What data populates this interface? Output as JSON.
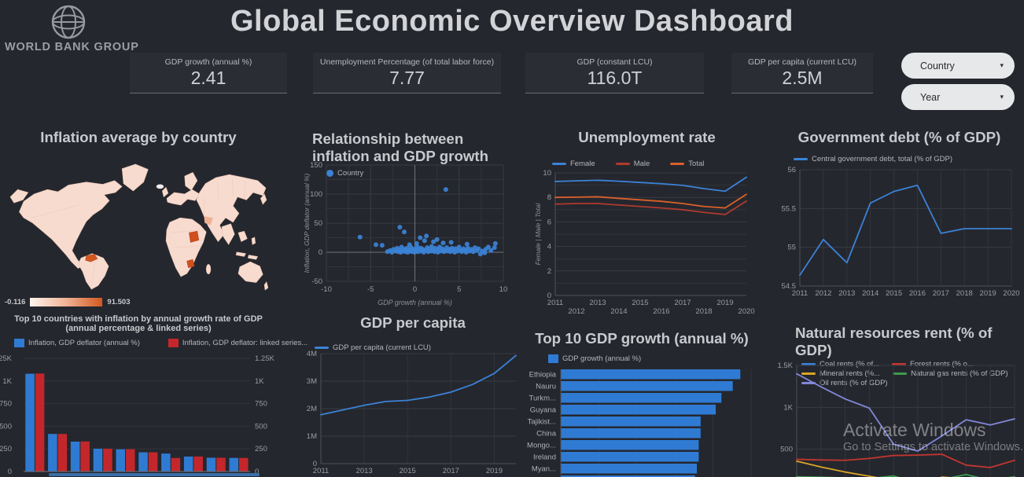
{
  "header": {
    "title": "Global Economic Overview Dashboard",
    "logo_text": "WORLD BANK GROUP"
  },
  "kpis": [
    {
      "label": "GDP growth (annual %)",
      "value": "2.41"
    },
    {
      "label": "Unemployment Percentage (of total labor force)",
      "value": "7.77"
    },
    {
      "label": "GDP (constant LCU)",
      "value": "116.0T"
    },
    {
      "label": "GDP per capita (current LCU)",
      "value": "2.5M"
    }
  ],
  "filters": [
    {
      "label": "Country"
    },
    {
      "label": "Year"
    }
  ],
  "watermark": {
    "line1": "Activate Windows",
    "line2": "Go to Settings to activate Windows."
  },
  "chart_data": [
    {
      "id": "inflation-map",
      "type": "choropleth",
      "title": "Inflation average by country",
      "legend_min": "-0.116",
      "legend_max": "91.503",
      "min_color": "#fdf4ef",
      "max_color": "#d2571e",
      "land_color": "#f7dbce",
      "highlights": [
        "Venezuela",
        "Sudan",
        "Zimbabwe"
      ]
    },
    {
      "id": "inflation-gdp-scatter",
      "type": "scatter",
      "title": "Relationship between inflation and GDP growth",
      "legend": [
        "Country"
      ],
      "color": "#3b82d6",
      "xlabel": "GDP growth (annual %)",
      "ylabel": "Inflation, GDP deflator (annual %)",
      "xlim": [
        -10,
        10
      ],
      "ylim": [
        -50,
        150
      ],
      "xticks": [
        {
          "v": -10,
          "l": "-10"
        },
        {
          "v": -7.5,
          "l": ""
        },
        {
          "v": -5,
          "l": "-5"
        },
        {
          "v": -2.5,
          "l": ""
        },
        {
          "v": 0,
          "l": "0"
        },
        {
          "v": 2.5,
          "l": ""
        },
        {
          "v": 5,
          "l": "5"
        },
        {
          "v": 7.5,
          "l": ""
        },
        {
          "v": 10,
          "l": "10"
        }
      ],
      "yticks": [
        {
          "v": -50,
          "l": "-50"
        },
        {
          "v": -25,
          "l": ""
        },
        {
          "v": 0,
          "l": "0"
        },
        {
          "v": 25,
          "l": ""
        },
        {
          "v": 50,
          "l": "50"
        },
        {
          "v": 75,
          "l": ""
        },
        {
          "v": 100,
          "l": "100"
        },
        {
          "v": 125,
          "l": ""
        },
        {
          "v": 150,
          "l": "150"
        }
      ],
      "points": [
        [
          3.5,
          108
        ],
        [
          -6.2,
          26
        ],
        [
          -1.7,
          43
        ],
        [
          -1.2,
          35
        ],
        [
          1.3,
          28
        ],
        [
          0.6,
          25
        ],
        [
          2.5,
          22
        ],
        [
          -4.4,
          13
        ],
        [
          -3.7,
          12
        ],
        [
          9.1,
          15
        ],
        [
          8.3,
          9
        ],
        [
          5.9,
          14
        ],
        [
          4.1,
          17
        ],
        [
          3.2,
          16
        ],
        [
          2.1,
          18
        ],
        [
          1.1,
          20
        ],
        [
          0.2,
          15
        ],
        [
          -0.6,
          13
        ],
        [
          7.4,
          -3
        ],
        [
          7.9,
          -1
        ],
        [
          -3.1,
          1
        ],
        [
          -2.8,
          3
        ],
        [
          -2.6,
          0
        ],
        [
          -2.4,
          5
        ],
        [
          -2.2,
          2
        ],
        [
          -2.0,
          7
        ],
        [
          -1.9,
          1
        ],
        [
          -1.8,
          4
        ],
        [
          -1.6,
          0
        ],
        [
          -1.5,
          9
        ],
        [
          -1.4,
          2
        ],
        [
          -1.2,
          5
        ],
        [
          -1.1,
          1
        ],
        [
          -1.0,
          3
        ],
        [
          -0.9,
          7
        ],
        [
          -0.8,
          0
        ],
        [
          -0.7,
          4
        ],
        [
          -0.5,
          2
        ],
        [
          -0.4,
          8
        ],
        [
          -0.3,
          1
        ],
        [
          -0.2,
          5
        ],
        [
          -0.1,
          3
        ],
        [
          0.0,
          0
        ],
        [
          0.1,
          6
        ],
        [
          0.2,
          2
        ],
        [
          0.3,
          9
        ],
        [
          0.4,
          1
        ],
        [
          0.5,
          4
        ],
        [
          0.7,
          7
        ],
        [
          0.8,
          2
        ],
        [
          0.9,
          5
        ],
        [
          1.0,
          0
        ],
        [
          1.2,
          3
        ],
        [
          1.4,
          8
        ],
        [
          1.5,
          1
        ],
        [
          1.6,
          6
        ],
        [
          1.8,
          2
        ],
        [
          1.9,
          10
        ],
        [
          2.0,
          4
        ],
        [
          2.2,
          1
        ],
        [
          2.3,
          7
        ],
        [
          2.4,
          3
        ],
        [
          2.6,
          0
        ],
        [
          2.7,
          5
        ],
        [
          2.8,
          9
        ],
        [
          3.0,
          2
        ],
        [
          3.1,
          6
        ],
        [
          3.3,
          1
        ],
        [
          3.4,
          4
        ],
        [
          3.6,
          8
        ],
        [
          3.7,
          2
        ],
        [
          3.9,
          5
        ],
        [
          4.0,
          1
        ],
        [
          4.2,
          7
        ],
        [
          4.3,
          3
        ],
        [
          4.5,
          0
        ],
        [
          4.6,
          6
        ],
        [
          4.8,
          2
        ],
        [
          5.0,
          9
        ],
        [
          5.1,
          4
        ],
        [
          5.3,
          1
        ],
        [
          5.5,
          6
        ],
        [
          5.7,
          3
        ],
        [
          5.8,
          0
        ],
        [
          6.0,
          7
        ],
        [
          6.2,
          2
        ],
        [
          6.4,
          5
        ],
        [
          6.6,
          1
        ],
        [
          6.8,
          8
        ],
        [
          7.0,
          3
        ],
        [
          7.2,
          6
        ],
        [
          7.6,
          2
        ],
        [
          8.0,
          5
        ],
        [
          8.6,
          3
        ],
        [
          9.0,
          8
        ]
      ]
    },
    {
      "id": "unemployment-rate",
      "type": "line",
      "title": "Unemployment rate",
      "ylabel": "Female | Male | Total",
      "x": [
        "2011",
        "2012",
        "2013",
        "2014",
        "2015",
        "2016",
        "2017",
        "2018",
        "2019",
        "2020"
      ],
      "xlabels": [
        "2011",
        "2012",
        "2013",
        "2014",
        "2015",
        "2016",
        "2017",
        "2018",
        "2019",
        "2020"
      ],
      "stagger": true,
      "vgrid": "none",
      "ylim": [
        0,
        10
      ],
      "yticks": [
        {
          "v": 0,
          "l": "0"
        },
        {
          "v": 1,
          "l": ""
        },
        {
          "v": 2,
          "l": "2"
        },
        {
          "v": 3,
          "l": ""
        },
        {
          "v": 4,
          "l": "4"
        },
        {
          "v": 5,
          "l": ""
        },
        {
          "v": 6,
          "l": "6"
        },
        {
          "v": 7,
          "l": ""
        },
        {
          "v": 8,
          "l": "8"
        },
        {
          "v": 9,
          "l": ""
        },
        {
          "v": 10,
          "l": "10"
        }
      ],
      "series": [
        {
          "name": "Female",
          "color": "#3b82d6",
          "values": [
            9.3,
            9.35,
            9.4,
            9.32,
            9.22,
            9.12,
            8.98,
            8.72,
            8.5,
            9.65
          ]
        },
        {
          "name": "Male",
          "color": "#b03a2e",
          "values": [
            7.45,
            7.5,
            7.5,
            7.38,
            7.26,
            7.14,
            7.0,
            6.78,
            6.6,
            7.7
          ]
        },
        {
          "name": "Total",
          "color": "#d9602b",
          "values": [
            8.0,
            8.02,
            8.05,
            7.92,
            7.8,
            7.68,
            7.5,
            7.26,
            7.14,
            8.25
          ]
        }
      ]
    },
    {
      "id": "government-debt",
      "type": "line",
      "title": "Government debt (% of GDP)",
      "x": [
        "2011",
        "2012",
        "2013",
        "2014",
        "2015",
        "2016",
        "2017",
        "2018",
        "2019",
        "2020"
      ],
      "xlabels": [
        "2011",
        "2012",
        "2013",
        "2014",
        "2015",
        "2016",
        "2017",
        "2018",
        "2019",
        "2020"
      ],
      "stagger": false,
      "vgrid": "all",
      "ylim": [
        54.5,
        56
      ],
      "yticks": [
        {
          "v": 54.5,
          "l": "54.5"
        },
        {
          "v": 55,
          "l": "55"
        },
        {
          "v": 55.5,
          "l": "55.5"
        },
        {
          "v": 56,
          "l": "56"
        }
      ],
      "series": [
        {
          "name": "Central government debt, total (% of GDP)",
          "color": "#3b82d6",
          "values": [
            54.64,
            55.1,
            54.8,
            55.57,
            55.72,
            55.8,
            55.18,
            55.24,
            55.24,
            55.24
          ]
        }
      ]
    },
    {
      "id": "top10-inflation",
      "type": "bar",
      "title": "Top 10 countries with inflation by annual growth rate of GDP",
      "subtitle": "(annual percentage & linked series)",
      "ylim": [
        0,
        1250
      ],
      "yticks": [
        {
          "v": 0,
          "l": "0"
        },
        {
          "v": 250,
          "l": "250"
        },
        {
          "v": 500,
          "l": "500"
        },
        {
          "v": 750,
          "l": "750"
        },
        {
          "v": 1000,
          "l": "1K"
        },
        {
          "v": 1250,
          "l": "1.25K"
        }
      ],
      "series": [
        {
          "name": "Inflation, GDP deflator (annual %)",
          "color": "#2f7bd3",
          "values": [
            1080,
            415,
            330,
            252,
            245,
            212,
            198,
            165,
            152,
            150
          ]
        },
        {
          "name": "Inflation, GDP deflator: linked series...",
          "color": "#c3272b",
          "values": [
            1082,
            415,
            332,
            252,
            246,
            212,
            150,
            166,
            152,
            150
          ]
        }
      ]
    },
    {
      "id": "gdp-per-capita",
      "type": "line",
      "title": "GDP per capita",
      "x": [
        "2011",
        "2012",
        "2013",
        "2014",
        "2015",
        "2016",
        "2017",
        "2018",
        "2019",
        "2020"
      ],
      "xlabels": [
        "2011",
        "",
        "2013",
        "",
        "2015",
        "",
        "2017",
        "",
        "2019",
        ""
      ],
      "stagger": false,
      "vgrid": "labeled",
      "ylim": [
        0,
        4000000
      ],
      "yticks": [
        {
          "v": 0,
          "l": "0"
        },
        {
          "v": 1000000,
          "l": "1M"
        },
        {
          "v": 2000000,
          "l": "2M"
        },
        {
          "v": 3000000,
          "l": "3M"
        },
        {
          "v": 4000000,
          "l": "4M"
        }
      ],
      "series": [
        {
          "name": "GDP per capita (current LCU)",
          "color": "#3b82d6",
          "values": [
            1780000,
            1950000,
            2120000,
            2260000,
            2300000,
            2420000,
            2600000,
            2880000,
            3280000,
            3930000
          ]
        }
      ]
    },
    {
      "id": "top10-gdp-growth",
      "type": "hbar",
      "title": "Top 10 GDP growth  (annual %)",
      "legend": [
        "GDP growth (annual %)"
      ],
      "color": "#2f7bd3",
      "categories": [
        "Ethiopia",
        "Nauru",
        "Turkm...",
        "Guyana",
        "Tajikist...",
        "China",
        "Mongo...",
        "Ireland",
        "Myan...",
        ""
      ],
      "values": [
        9.5,
        9.1,
        8.5,
        8.2,
        7.4,
        7.4,
        7.3,
        7.3,
        7.2,
        7.1
      ]
    },
    {
      "id": "natural-resources",
      "type": "line",
      "title": "Natural resources rent (% of GDP)",
      "x": [
        "2011",
        "2012",
        "2013",
        "2014",
        "2015",
        "2016",
        "2017",
        "2018",
        "2019",
        "2020"
      ],
      "xlabels": [
        "",
        "",
        "",
        "",
        "",
        "",
        "",
        "",
        "",
        ""
      ],
      "stagger": false,
      "vgrid": "all",
      "ylim": [
        0,
        1500
      ],
      "yticks": [
        {
          "v": 500,
          "l": "500"
        },
        {
          "v": 1000,
          "l": "1K"
        },
        {
          "v": 1500,
          "l": "1.5K"
        }
      ],
      "series": [
        {
          "name": "Coal rents (% of...",
          "color": "#3b82d6",
          "values": [
            55,
            35,
            20,
            12,
            8,
            6,
            8,
            10,
            8,
            14
          ]
        },
        {
          "name": "Forest rents (% o...",
          "color": "#c23631",
          "values": [
            380,
            372,
            368,
            390,
            425,
            430,
            440,
            310,
            282,
            368
          ]
        },
        {
          "name": "Mineral rents (%...",
          "color": "#d9a425",
          "values": [
            358,
            288,
            228,
            178,
            128,
            75,
            168,
            148,
            62,
            168
          ]
        },
        {
          "name": "Natural gas rents (% of GDP)",
          "color": "#3f9b4f",
          "values": [
            172,
            166,
            158,
            150,
            182,
            95,
            140,
            198,
            128,
            172
          ]
        },
        {
          "name": "Oil rents (% of GDP)",
          "color": "#8287d9",
          "values": [
            1400,
            1245,
            1100,
            990,
            560,
            478,
            660,
            852,
            790,
            862
          ]
        }
      ]
    }
  ]
}
